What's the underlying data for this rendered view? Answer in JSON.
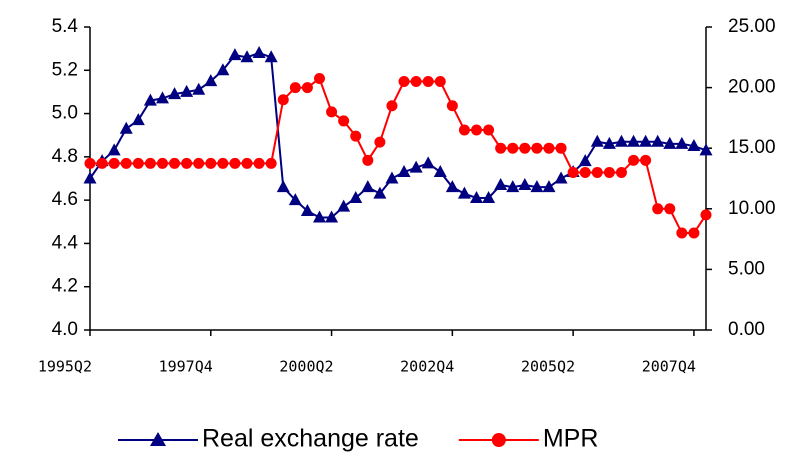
{
  "chart_data": {
    "type": "line",
    "categories": [
      "1995Q2",
      null,
      null,
      null,
      null,
      null,
      null,
      null,
      null,
      null,
      "1997Q4",
      null,
      null,
      null,
      null,
      null,
      null,
      null,
      null,
      null,
      "2000Q2",
      null,
      null,
      null,
      null,
      null,
      null,
      null,
      null,
      null,
      "2002Q4",
      null,
      null,
      null,
      null,
      null,
      null,
      null,
      null,
      null,
      "2005Q2",
      null,
      null,
      null,
      null,
      null,
      null,
      null,
      null,
      null,
      "2007Q4",
      null
    ],
    "series": [
      {
        "name": "Real exchange rate",
        "color": "#000080",
        "marker": "triangle",
        "values": [
          4.7,
          4.78,
          4.83,
          4.93,
          4.97,
          5.06,
          5.07,
          5.09,
          5.1,
          5.11,
          5.15,
          5.2,
          5.27,
          5.26,
          5.28,
          5.26,
          4.66,
          4.6,
          4.55,
          4.52,
          4.52,
          4.57,
          4.61,
          4.66,
          4.63,
          4.7,
          4.73,
          4.75,
          4.77,
          4.73,
          4.66,
          4.63,
          4.61,
          4.61,
          4.67,
          4.66,
          4.67,
          4.66,
          4.66,
          4.7,
          4.73,
          4.78,
          4.87,
          4.86,
          4.87,
          4.87,
          4.87,
          4.87,
          4.86,
          4.86,
          4.85,
          4.83
        ]
      },
      {
        "name": "MPR",
        "color": "#ff0000",
        "marker": "circle",
        "axis": "y2",
        "values": [
          13.75,
          13.75,
          13.75,
          13.75,
          13.75,
          13.75,
          13.75,
          13.75,
          13.75,
          13.75,
          13.75,
          13.75,
          13.75,
          13.75,
          13.75,
          13.75,
          19.0,
          20.0,
          20.0,
          20.75,
          18.0,
          17.25,
          16.0,
          14.0,
          15.5,
          18.5,
          20.5,
          20.5,
          20.5,
          20.5,
          18.5,
          16.5,
          16.5,
          16.5,
          15.0,
          15.0,
          15.0,
          15.0,
          15.0,
          15.0,
          13.0,
          13.0,
          13.0,
          13.0,
          13.0,
          14.0,
          14.0,
          10.0,
          10.0,
          8.0,
          8.0,
          9.5
        ]
      }
    ],
    "ylim": [
      4.0,
      5.4
    ],
    "yticks": [
      {
        "value": 4.0,
        "label": "4.0"
      },
      4.2,
      4.4,
      4.6,
      4.8,
      {
        "value": 5.0,
        "label": "5.0"
      },
      5.2,
      5.4
    ],
    "y2lim": [
      0,
      25
    ],
    "y2ticks": [
      {
        "value": 0,
        "label": "0.00"
      },
      {
        "value": 5,
        "label": "5.00"
      },
      {
        "value": 10,
        "label": "10.00"
      },
      {
        "value": 15,
        "label": "15.00"
      },
      {
        "value": 20,
        "label": "20.00"
      },
      {
        "value": 25,
        "label": "25.00"
      }
    ],
    "legend": "bottom"
  }
}
